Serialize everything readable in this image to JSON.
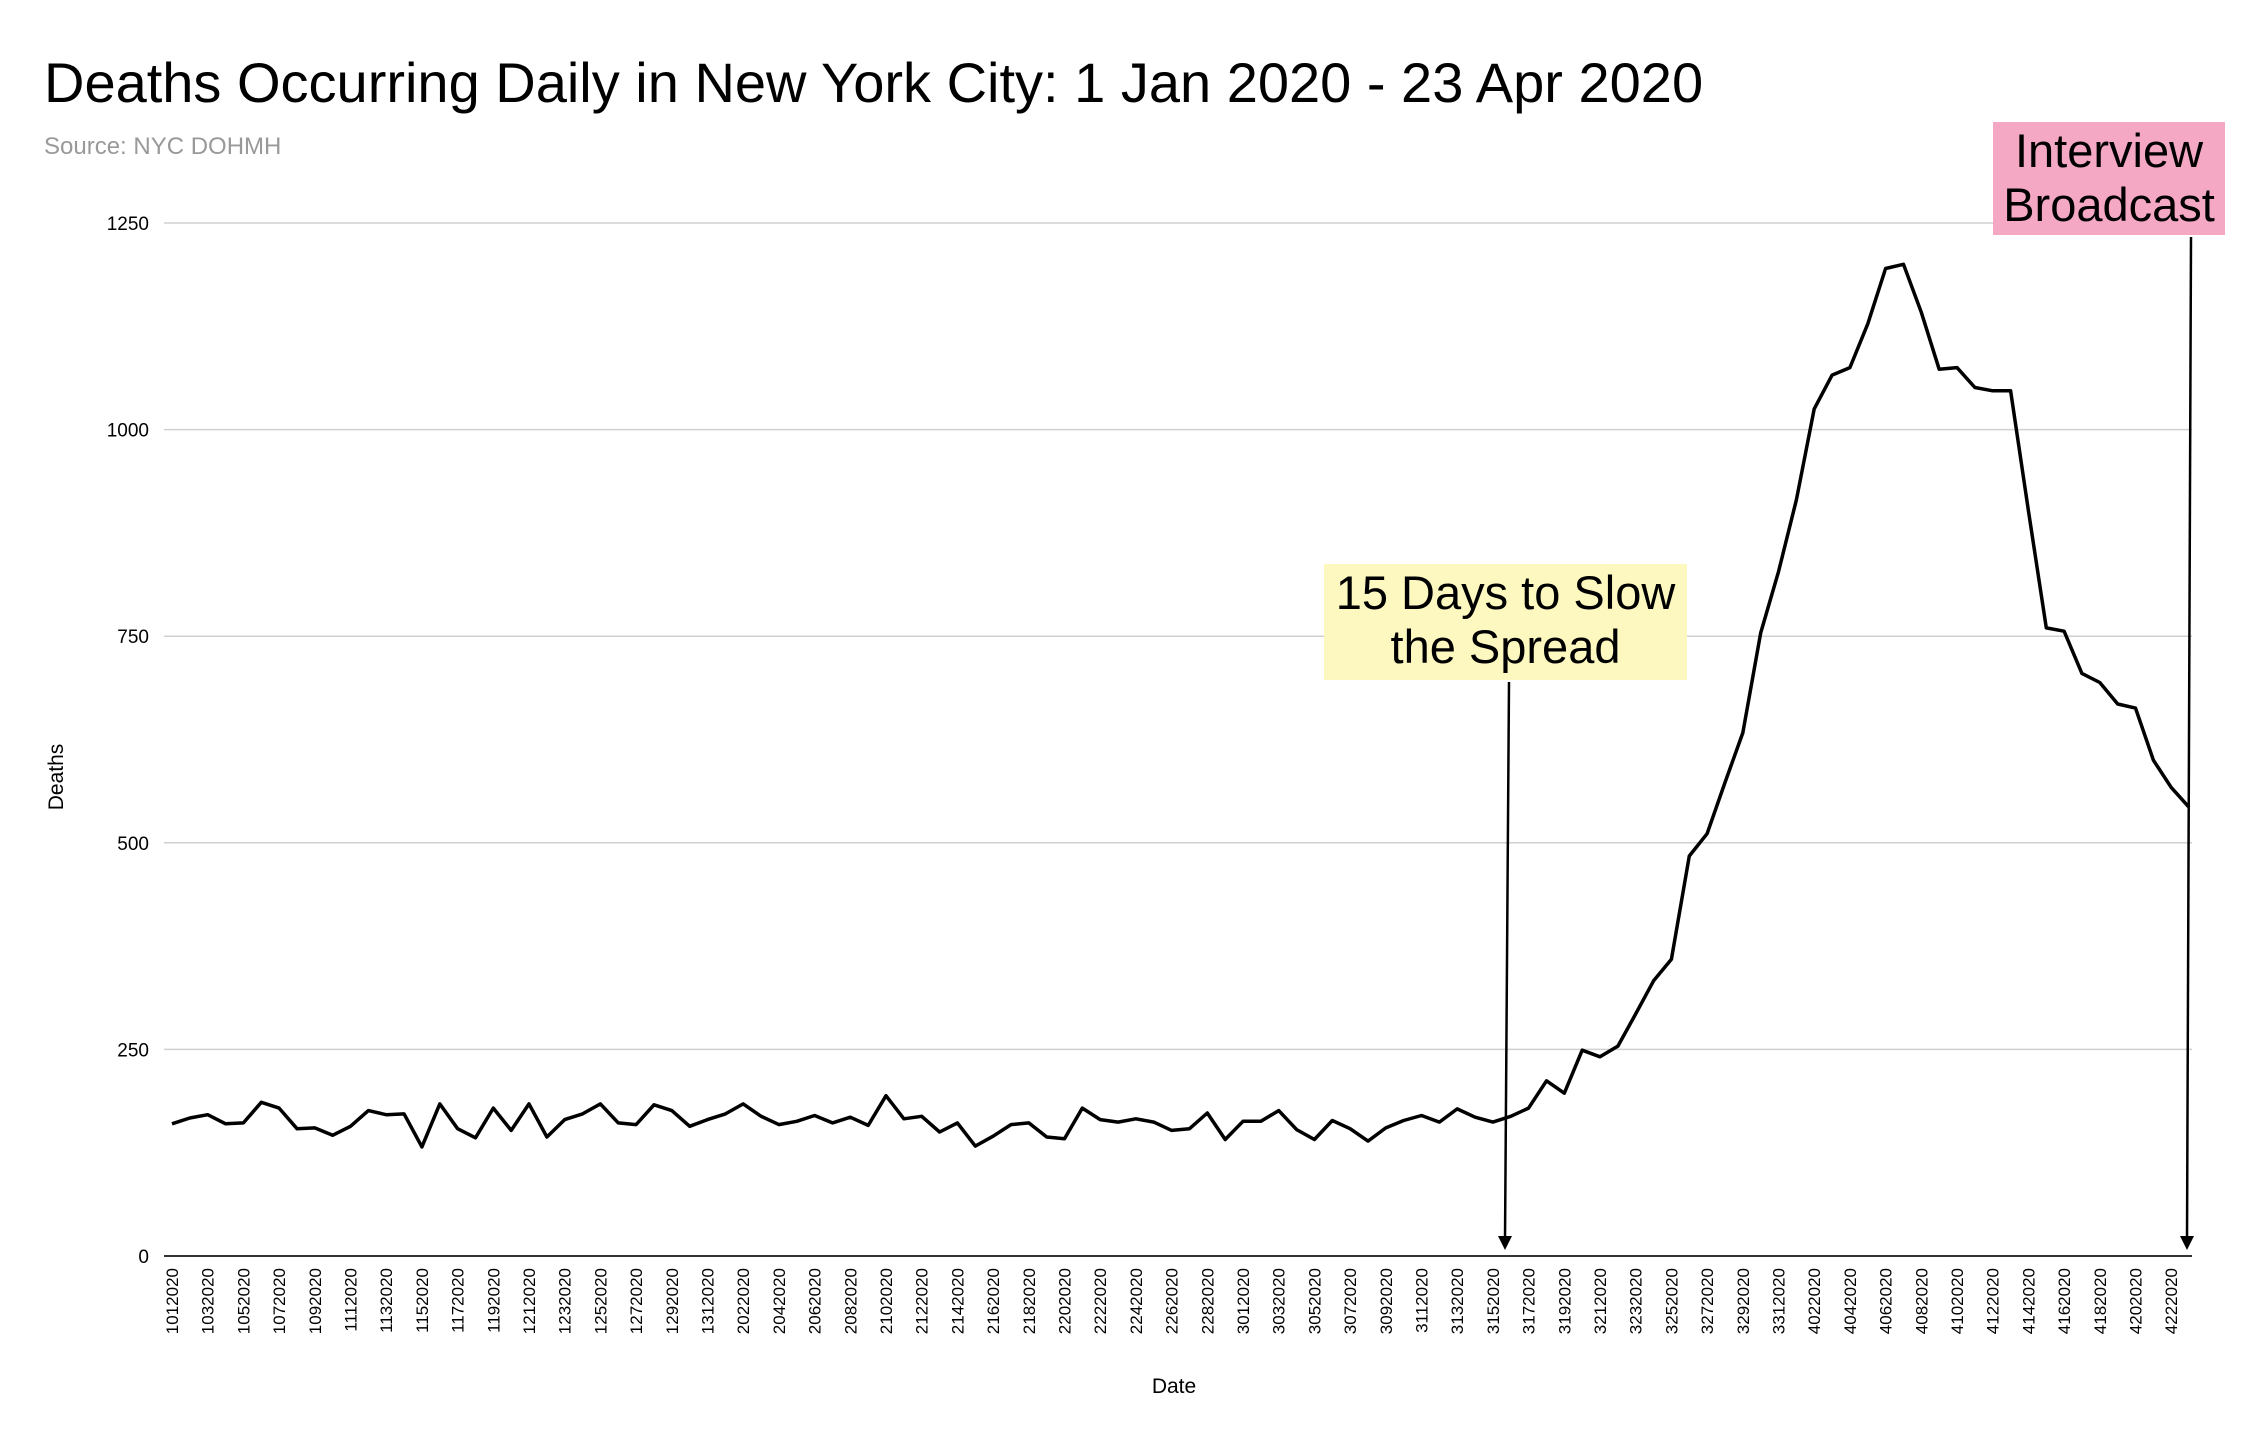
{
  "chart_data": {
    "type": "line",
    "title": "Deaths Occurring Daily in New York City: 1 Jan 2020 - 23 Apr 2020",
    "subtitle": "Source: NYC DOHMH",
    "xlabel": "Date",
    "ylabel": "Deaths",
    "ylim": [
      0,
      1250
    ],
    "yticks": [
      "0",
      "250",
      "500",
      "750",
      "1000",
      "1250"
    ],
    "grid": true,
    "legend": "none",
    "line_color": "#000000",
    "x_tick_labels": [
      "1012020",
      "1032020",
      "1052020",
      "1072020",
      "1092020",
      "1112020",
      "1132020",
      "1152020",
      "1172020",
      "1192020",
      "1212020",
      "1232020",
      "1252020",
      "1272020",
      "1292020",
      "1312020",
      "2022020",
      "2042020",
      "2062020",
      "2082020",
      "2102020",
      "2122020",
      "2142020",
      "2162020",
      "2182020",
      "2202020",
      "2222020",
      "2242020",
      "2262020",
      "2282020",
      "3012020",
      "3032020",
      "3052020",
      "3072020",
      "3092020",
      "3112020",
      "3132020",
      "3152020",
      "3172020",
      "3192020",
      "3212020",
      "3232020",
      "3252020",
      "3272020",
      "3292020",
      "3312020",
      "4022020",
      "4042020",
      "4062020",
      "4082020",
      "4102020",
      "4122020",
      "4142020",
      "4162020",
      "4182020",
      "4202020",
      "4222020"
    ],
    "series": [
      {
        "values": [
          160,
          167,
          171,
          160,
          161,
          186,
          179,
          154,
          155,
          146,
          157,
          176,
          171,
          172,
          132,
          184,
          154,
          143,
          179,
          152,
          184,
          144,
          165,
          172,
          184,
          161,
          159,
          183,
          176,
          157,
          165,
          172,
          184,
          169,
          159,
          163,
          170,
          161,
          168,
          158,
          194,
          166,
          169,
          150,
          161,
          133,
          145,
          159,
          161,
          144,
          142,
          179,
          165,
          162,
          166,
          162,
          152,
          154,
          173,
          141,
          163,
          163,
          176,
          153,
          141,
          164,
          154,
          139,
          155,
          164,
          170,
          162,
          178,
          168,
          162,
          169,
          179,
          212,
          197,
          249,
          241,
          254,
          293,
          333,
          359,
          484,
          511,
          573,
          633,
          754,
          828,
          915,
          1025,
          1066,
          1075,
          1128,
          1195,
          1200,
          1142,
          1073,
          1075,
          1051,
          1047,
          1047,
          902,
          760,
          756,
          705,
          694,
          668,
          663,
          600,
          567,
          543
        ]
      }
    ],
    "annotations": [
      {
        "lines": [
          "15 Days to Slow",
          "the Spread"
        ],
        "x": "3162020",
        "color": "#fdf8c0"
      },
      {
        "lines": [
          "Interview",
          "Broadcast"
        ],
        "x": "4232020",
        "color": "#f4a8c4"
      }
    ]
  }
}
